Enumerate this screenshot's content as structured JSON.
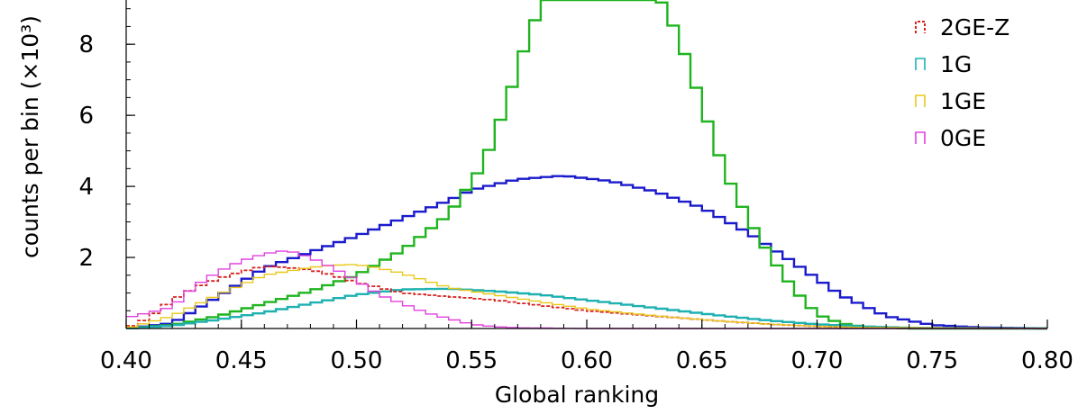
{
  "chart_data": {
    "type": "histogram-step",
    "xlabel": "Global ranking",
    "ylabel": "counts per bin (×10³)",
    "xlim": [
      0.4,
      0.8
    ],
    "ylim": [
      0,
      9.6
    ],
    "x_ticks": [
      "0.40",
      "0.45",
      "0.50",
      "0.55",
      "0.60",
      "0.65",
      "0.70",
      "0.75",
      "0.80"
    ],
    "x_tick_values": [
      0.4,
      0.45,
      0.5,
      0.55,
      0.6,
      0.65,
      0.7,
      0.75,
      0.8
    ],
    "y_ticks": [
      "2",
      "4",
      "6",
      "8"
    ],
    "y_tick_values": [
      2,
      4,
      6,
      8
    ],
    "legend_position": "top-right",
    "legend": [
      {
        "label": "2GE-Z",
        "color": "#d62020",
        "dashed": true
      },
      {
        "label": "1G",
        "color": "#1fb0b0",
        "dashed": false
      },
      {
        "label": "1GE",
        "color": "#e8c81a",
        "dashed": false
      },
      {
        "label": "0GE",
        "color": "#e040e0",
        "dashed": false
      }
    ],
    "series": [
      {
        "color": "#1a1acc",
        "width": 2.4,
        "dashed": false,
        "points": [
          [
            0.4,
            0.0
          ],
          [
            0.42,
            0.15
          ],
          [
            0.44,
            0.9
          ],
          [
            0.46,
            1.7
          ],
          [
            0.48,
            2.15
          ],
          [
            0.5,
            2.6
          ],
          [
            0.52,
            3.1
          ],
          [
            0.54,
            3.6
          ],
          [
            0.55,
            3.9
          ],
          [
            0.57,
            4.2
          ],
          [
            0.59,
            4.3
          ],
          [
            0.61,
            4.15
          ],
          [
            0.63,
            3.85
          ],
          [
            0.65,
            3.4
          ],
          [
            0.67,
            2.7
          ],
          [
            0.69,
            1.85
          ],
          [
            0.71,
            0.95
          ],
          [
            0.73,
            0.35
          ],
          [
            0.75,
            0.1
          ],
          [
            0.77,
            0.03
          ],
          [
            0.8,
            0.0
          ]
        ]
      },
      {
        "color": "#1fb41f",
        "width": 2.4,
        "dashed": false,
        "points": [
          [
            0.4,
            0.0
          ],
          [
            0.42,
            0.1
          ],
          [
            0.44,
            0.35
          ],
          [
            0.46,
            0.7
          ],
          [
            0.48,
            1.05
          ],
          [
            0.5,
            1.5
          ],
          [
            0.52,
            2.2
          ],
          [
            0.54,
            3.2
          ],
          [
            0.555,
            4.6
          ],
          [
            0.565,
            6.3
          ],
          [
            0.575,
            8.3
          ],
          [
            0.585,
            9.8
          ],
          [
            0.62,
            9.8
          ],
          [
            0.63,
            9.5
          ],
          [
            0.64,
            8.2
          ],
          [
            0.65,
            6.3
          ],
          [
            0.66,
            4.4
          ],
          [
            0.67,
            3.1
          ],
          [
            0.68,
            2.0
          ],
          [
            0.69,
            1.1
          ],
          [
            0.7,
            0.4
          ],
          [
            0.71,
            0.15
          ],
          [
            0.72,
            0.05
          ],
          [
            0.74,
            0.0
          ],
          [
            0.8,
            0.0
          ]
        ]
      },
      {
        "color": "#1fb0b0",
        "width": 2.4,
        "dashed": false,
        "points": [
          [
            0.4,
            0.0
          ],
          [
            0.42,
            0.08
          ],
          [
            0.44,
            0.25
          ],
          [
            0.46,
            0.45
          ],
          [
            0.48,
            0.7
          ],
          [
            0.5,
            0.95
          ],
          [
            0.52,
            1.1
          ],
          [
            0.54,
            1.12
          ],
          [
            0.56,
            1.05
          ],
          [
            0.58,
            0.95
          ],
          [
            0.6,
            0.8
          ],
          [
            0.62,
            0.65
          ],
          [
            0.64,
            0.5
          ],
          [
            0.66,
            0.35
          ],
          [
            0.68,
            0.22
          ],
          [
            0.7,
            0.12
          ],
          [
            0.72,
            0.06
          ],
          [
            0.74,
            0.02
          ],
          [
            0.8,
            0.0
          ]
        ]
      },
      {
        "color": "#d62020",
        "width": 1.8,
        "dashed": true,
        "points": [
          [
            0.4,
            0.0
          ],
          [
            0.41,
            0.3
          ],
          [
            0.42,
            0.8
          ],
          [
            0.43,
            1.15
          ],
          [
            0.44,
            1.4
          ],
          [
            0.45,
            1.6
          ],
          [
            0.46,
            1.75
          ],
          [
            0.47,
            1.72
          ],
          [
            0.48,
            1.65
          ],
          [
            0.49,
            1.5
          ],
          [
            0.5,
            1.3
          ],
          [
            0.51,
            1.15
          ],
          [
            0.52,
            1.0
          ],
          [
            0.54,
            0.9
          ],
          [
            0.56,
            0.8
          ],
          [
            0.58,
            0.65
          ],
          [
            0.6,
            0.5
          ],
          [
            0.62,
            0.4
          ],
          [
            0.64,
            0.3
          ],
          [
            0.66,
            0.2
          ],
          [
            0.68,
            0.12
          ],
          [
            0.7,
            0.06
          ],
          [
            0.72,
            0.02
          ],
          [
            0.8,
            0.0
          ]
        ]
      },
      {
        "color": "#e8c81a",
        "width": 1.4,
        "dashed": false,
        "points": [
          [
            0.4,
            0.0
          ],
          [
            0.42,
            0.35
          ],
          [
            0.44,
            0.95
          ],
          [
            0.46,
            1.5
          ],
          [
            0.48,
            1.72
          ],
          [
            0.49,
            1.78
          ],
          [
            0.5,
            1.8
          ],
          [
            0.51,
            1.7
          ],
          [
            0.52,
            1.55
          ],
          [
            0.53,
            1.35
          ],
          [
            0.54,
            1.15
          ],
          [
            0.56,
            0.95
          ],
          [
            0.58,
            0.75
          ],
          [
            0.6,
            0.55
          ],
          [
            0.62,
            0.42
          ],
          [
            0.64,
            0.3
          ],
          [
            0.66,
            0.2
          ],
          [
            0.68,
            0.12
          ],
          [
            0.7,
            0.06
          ],
          [
            0.72,
            0.03
          ],
          [
            0.8,
            0.0
          ]
        ]
      },
      {
        "color": "#e040e0",
        "width": 1.4,
        "dashed": false,
        "points": [
          [
            0.4,
            0.3
          ],
          [
            0.42,
            0.6
          ],
          [
            0.43,
            1.2
          ],
          [
            0.44,
            1.6
          ],
          [
            0.45,
            1.9
          ],
          [
            0.46,
            2.1
          ],
          [
            0.47,
            2.2
          ],
          [
            0.48,
            2.0
          ],
          [
            0.49,
            1.7
          ],
          [
            0.5,
            1.35
          ],
          [
            0.51,
            0.95
          ],
          [
            0.52,
            0.7
          ],
          [
            0.53,
            0.45
          ],
          [
            0.54,
            0.28
          ],
          [
            0.55,
            0.12
          ],
          [
            0.56,
            0.05
          ],
          [
            0.57,
            0.02
          ],
          [
            0.6,
            0.0
          ],
          [
            0.8,
            0.0
          ]
        ]
      }
    ]
  }
}
